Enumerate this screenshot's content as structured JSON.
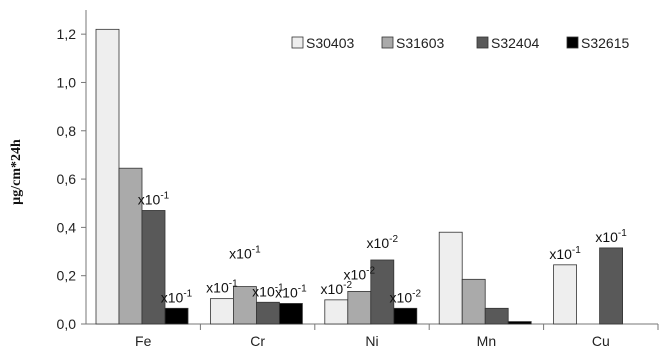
{
  "chart_data": {
    "type": "bar",
    "title": "",
    "xlabel": "",
    "ylabel": "µg/cm*24h",
    "ylim": [
      0,
      1.3
    ],
    "yticks": [
      "0,0",
      "0,2",
      "0,4",
      "0,6",
      "0,8",
      "1,0",
      "1,2"
    ],
    "grid": false,
    "legend_position": "top-right",
    "categories": [
      "Fe",
      "Cr",
      "Ni",
      "Mn",
      "Cu"
    ],
    "series": [
      {
        "name": "S30403",
        "color": "#eeeeee",
        "values": [
          1.22,
          0.105,
          0.1,
          0.38,
          0.245
        ]
      },
      {
        "name": "S31603",
        "color": "#aaaaaa",
        "values": [
          0.645,
          0.155,
          0.135,
          0.185,
          null
        ]
      },
      {
        "name": "S32404",
        "color": "#595959",
        "values": [
          0.47,
          0.09,
          0.265,
          0.065,
          0.315
        ]
      },
      {
        "name": "S32615",
        "color": "#000000",
        "values": [
          0.065,
          0.085,
          0.065,
          0.01,
          null
        ]
      }
    ],
    "annotations": [
      {
        "category": "Fe",
        "series": "S32404",
        "text": "x10",
        "sup": "-1"
      },
      {
        "category": "Fe",
        "series": "S32615",
        "text": "x10",
        "sup": "-1"
      },
      {
        "category": "Cr",
        "series": "S30403",
        "text": "x10",
        "sup": "-1"
      },
      {
        "category": "Cr",
        "series": "S31603",
        "text": "x10",
        "sup": "-1"
      },
      {
        "category": "Cr",
        "series": "S32404",
        "text": "x10",
        "sup": "-1"
      },
      {
        "category": "Cr",
        "series": "S32615",
        "text": "x10",
        "sup": "-1"
      },
      {
        "category": "Ni",
        "series": "S30403",
        "text": "x10",
        "sup": "-2"
      },
      {
        "category": "Ni",
        "series": "S31603",
        "text": "x10",
        "sup": "-2"
      },
      {
        "category": "Ni",
        "series": "S32404",
        "text": "x10",
        "sup": "-2"
      },
      {
        "category": "Ni",
        "series": "S32615",
        "text": "x10",
        "sup": "-2"
      },
      {
        "category": "Cu",
        "series": "S30403",
        "text": "x10",
        "sup": "-1"
      },
      {
        "category": "Cu",
        "series": "S32404",
        "text": "x10",
        "sup": "-1"
      }
    ]
  }
}
